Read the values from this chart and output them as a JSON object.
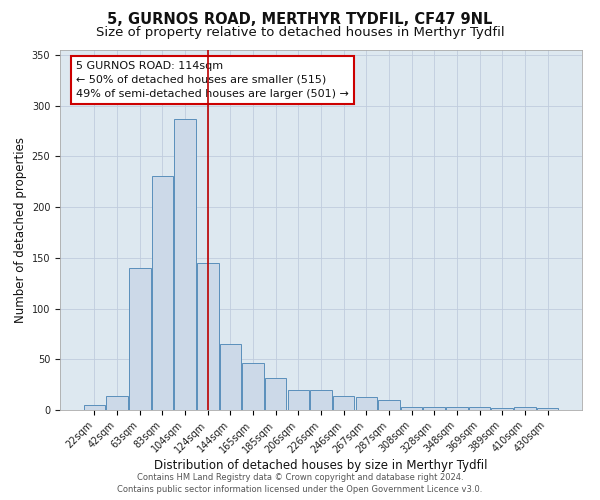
{
  "title1": "5, GURNOS ROAD, MERTHYR TYDFIL, CF47 9NL",
  "title2": "Size of property relative to detached houses in Merthyr Tydfil",
  "xlabel": "Distribution of detached houses by size in Merthyr Tydfil",
  "ylabel": "Number of detached properties",
  "categories": [
    "22sqm",
    "42sqm",
    "63sqm",
    "83sqm",
    "104sqm",
    "124sqm",
    "144sqm",
    "165sqm",
    "185sqm",
    "206sqm",
    "226sqm",
    "246sqm",
    "267sqm",
    "287sqm",
    "308sqm",
    "328sqm",
    "348sqm",
    "369sqm",
    "389sqm",
    "410sqm",
    "430sqm"
  ],
  "values": [
    5,
    14,
    140,
    231,
    287,
    145,
    65,
    46,
    32,
    20,
    20,
    14,
    13,
    10,
    3,
    3,
    3,
    3,
    2,
    3,
    2
  ],
  "bar_color": "#ccd9e8",
  "bar_edge_color": "#5a8fbb",
  "vline_x": 5.0,
  "vline_color": "#bb0000",
  "annotation_text": "5 GURNOS ROAD: 114sqm\n← 50% of detached houses are smaller (515)\n49% of semi-detached houses are larger (501) →",
  "annotation_box_color": "#ffffff",
  "annotation_box_edge": "#cc0000",
  "grid_color": "#c0ccdd",
  "bg_color": "#dde8f0",
  "ylim": [
    0,
    355
  ],
  "yticks": [
    0,
    50,
    100,
    150,
    200,
    250,
    300,
    350
  ],
  "footer": "Contains HM Land Registry data © Crown copyright and database right 2024.\nContains public sector information licensed under the Open Government Licence v3.0.",
  "title_fontsize": 10.5,
  "subtitle_fontsize": 9.5,
  "xlabel_fontsize": 8.5,
  "ylabel_fontsize": 8.5,
  "tick_fontsize": 7,
  "annotation_fontsize": 8,
  "footer_fontsize": 6
}
